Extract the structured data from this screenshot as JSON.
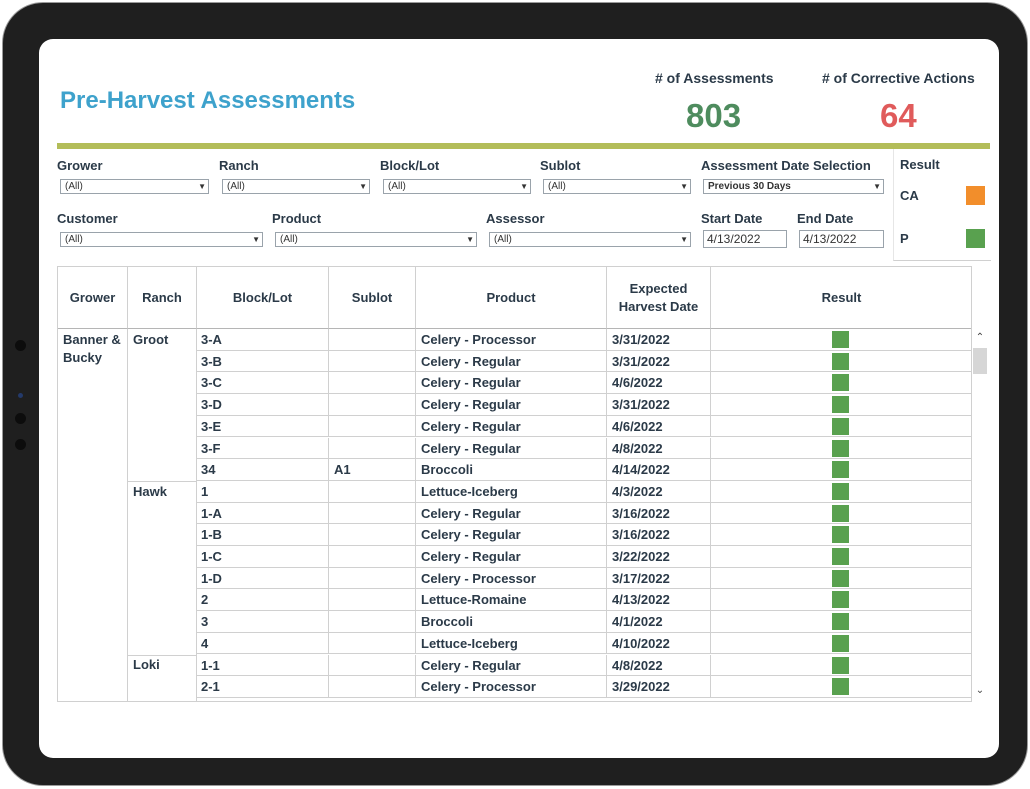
{
  "dashboard": {
    "title": "Pre-Harvest Assessments",
    "assessments_label": "# of Assessments",
    "assessments_value": "803",
    "corrective_label": "# of Corrective Actions",
    "corrective_value": "64"
  },
  "colors": {
    "title": "#3ea2cc",
    "assessments_value": "#4e8c5e",
    "corrective_value": "#e05b5b",
    "divider": "#b3bd59",
    "result_p": "#59a14f",
    "result_ca": "#f28e2b"
  },
  "filters": {
    "grower": {
      "label": "Grower",
      "value": "(All)"
    },
    "ranch": {
      "label": "Ranch",
      "value": "(All)"
    },
    "block_lot": {
      "label": "Block/Lot",
      "value": "(All)"
    },
    "sublot": {
      "label": "Sublot",
      "value": "(All)"
    },
    "date_selection": {
      "label": "Assessment Date Selection",
      "value": "Previous 30 Days"
    },
    "customer": {
      "label": "Customer",
      "value": "(All)"
    },
    "product": {
      "label": "Product",
      "value": "(All)"
    },
    "assessor": {
      "label": "Assessor",
      "value": "(All)"
    },
    "start_date": {
      "label": "Start Date",
      "value": "4/13/2022"
    },
    "end_date": {
      "label": "End Date",
      "value": "4/13/2022"
    }
  },
  "legend": {
    "title": "Result",
    "items": [
      {
        "label": "CA",
        "color": "#f28e2b"
      },
      {
        "label": "P",
        "color": "#59a14f"
      }
    ]
  },
  "table": {
    "headers": {
      "grower": "Grower",
      "ranch": "Ranch",
      "block_lot": "Block/Lot",
      "sublot": "Sublot",
      "product": "Product",
      "expected_line1": "Expected",
      "expected_line2": "Harvest Date",
      "result": "Result"
    },
    "grower_groups": [
      {
        "name_line1": "Banner &",
        "name_line2": "Bucky"
      }
    ],
    "ranch_groups": [
      {
        "name": "Groot"
      },
      {
        "name": "Hawk"
      },
      {
        "name": "Loki"
      }
    ],
    "rows": [
      {
        "block": "3-A",
        "sublot": "",
        "product": "Celery - Processor",
        "date": "3/31/2022",
        "result": "P"
      },
      {
        "block": "3-B",
        "sublot": "",
        "product": "Celery - Regular",
        "date": "3/31/2022",
        "result": "P"
      },
      {
        "block": "3-C",
        "sublot": "",
        "product": "Celery - Regular",
        "date": "4/6/2022",
        "result": "P"
      },
      {
        "block": "3-D",
        "sublot": "",
        "product": "Celery - Regular",
        "date": "3/31/2022",
        "result": "P"
      },
      {
        "block": "3-E",
        "sublot": "",
        "product": "Celery - Regular",
        "date": "4/6/2022",
        "result": "P"
      },
      {
        "block": "3-F",
        "sublot": "",
        "product": "Celery - Regular",
        "date": "4/8/2022",
        "result": "P"
      },
      {
        "block": "34",
        "sublot": "A1",
        "product": "Broccoli",
        "date": "4/14/2022",
        "result": "P"
      },
      {
        "block": "1",
        "sublot": "",
        "product": "Lettuce-Iceberg",
        "date": "4/3/2022",
        "result": "P"
      },
      {
        "block": "1-A",
        "sublot": "",
        "product": "Celery - Regular",
        "date": "3/16/2022",
        "result": "P"
      },
      {
        "block": "1-B",
        "sublot": "",
        "product": "Celery - Regular",
        "date": "3/16/2022",
        "result": "P"
      },
      {
        "block": "1-C",
        "sublot": "",
        "product": "Celery - Regular",
        "date": "3/22/2022",
        "result": "P"
      },
      {
        "block": "1-D",
        "sublot": "",
        "product": "Celery - Processor",
        "date": "3/17/2022",
        "result": "P"
      },
      {
        "block": "2",
        "sublot": "",
        "product": "Lettuce-Romaine",
        "date": "4/13/2022",
        "result": "P"
      },
      {
        "block": "3",
        "sublot": "",
        "product": "Broccoli",
        "date": "4/1/2022",
        "result": "P"
      },
      {
        "block": "4",
        "sublot": "",
        "product": "Lettuce-Iceberg",
        "date": "4/10/2022",
        "result": "P"
      },
      {
        "block": "1-1",
        "sublot": "",
        "product": "Celery - Regular",
        "date": "4/8/2022",
        "result": "P"
      },
      {
        "block": "2-1",
        "sublot": "",
        "product": "Celery - Processor",
        "date": "3/29/2022",
        "result": "P"
      }
    ]
  },
  "icons": {
    "dropdown": "▼",
    "scroll_up": "⌃",
    "scroll_down": "⌄"
  }
}
